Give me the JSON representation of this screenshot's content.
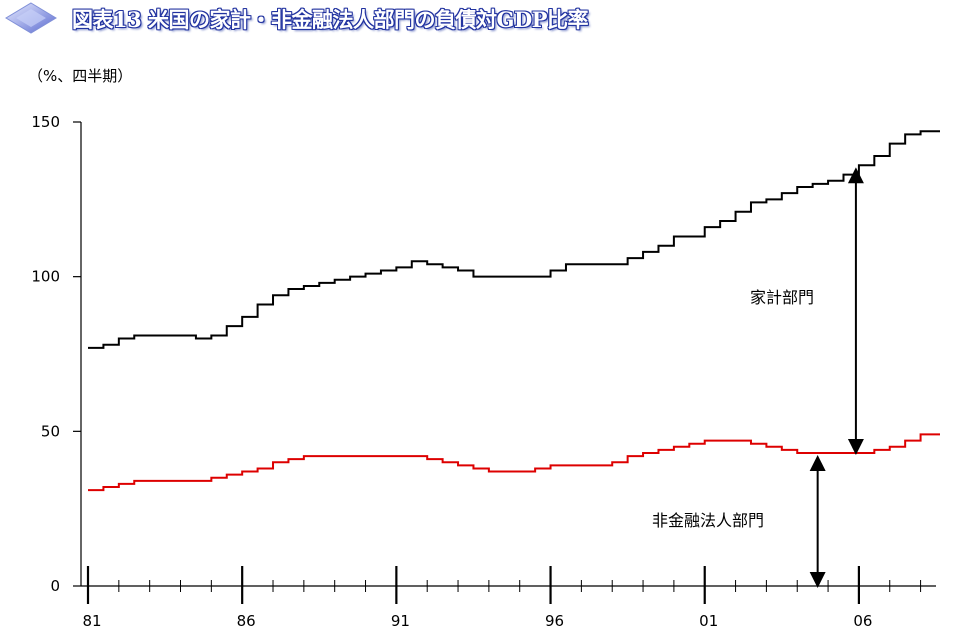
{
  "header": {
    "title": "図表13 米国の家計・非金融法人部門の負債対GDP比率",
    "logo_icon": "diamond-logo-icon"
  },
  "chart_data": {
    "type": "line",
    "title": "図表13 米国の家計・非金融法人部門の負債対GDP比率",
    "unit_label": "（%、四半期）",
    "xlabel": "",
    "ylabel": "",
    "x_start": 1981.0,
    "x_end": 2008.5,
    "ylim": [
      0,
      150
    ],
    "yticks": [
      0,
      50,
      100,
      150
    ],
    "xticks": [
      "81",
      "86",
      "91",
      "96",
      "01",
      "06"
    ],
    "grid": false,
    "legend": "none",
    "series": [
      {
        "name": "家計部門",
        "color": "#000000",
        "points": [
          [
            1981.0,
            77
          ],
          [
            1981.5,
            78
          ],
          [
            1982.0,
            80
          ],
          [
            1982.5,
            81
          ],
          [
            1983.0,
            81
          ],
          [
            1983.5,
            81
          ],
          [
            1984.0,
            81
          ],
          [
            1984.5,
            80
          ],
          [
            1985.0,
            81
          ],
          [
            1985.5,
            84
          ],
          [
            1986.0,
            87
          ],
          [
            1986.5,
            91
          ],
          [
            1987.0,
            94
          ],
          [
            1987.5,
            96
          ],
          [
            1988.0,
            97
          ],
          [
            1988.5,
            98
          ],
          [
            1989.0,
            99
          ],
          [
            1989.5,
            100
          ],
          [
            1990.0,
            101
          ],
          [
            1990.5,
            102
          ],
          [
            1991.0,
            103
          ],
          [
            1991.5,
            105
          ],
          [
            1992.0,
            104
          ],
          [
            1992.5,
            103
          ],
          [
            1993.0,
            102
          ],
          [
            1993.5,
            100
          ],
          [
            1994.0,
            100
          ],
          [
            1994.5,
            100
          ],
          [
            1995.0,
            100
          ],
          [
            1995.5,
            100
          ],
          [
            1996.0,
            102
          ],
          [
            1996.5,
            104
          ],
          [
            1997.0,
            104
          ],
          [
            1997.5,
            104
          ],
          [
            1998.0,
            104
          ],
          [
            1998.5,
            106
          ],
          [
            1999.0,
            108
          ],
          [
            1999.5,
            110
          ],
          [
            2000.0,
            113
          ],
          [
            2000.5,
            113
          ],
          [
            2001.0,
            116
          ],
          [
            2001.5,
            118
          ],
          [
            2002.0,
            121
          ],
          [
            2002.5,
            124
          ],
          [
            2003.0,
            125
          ],
          [
            2003.5,
            127
          ],
          [
            2004.0,
            129
          ],
          [
            2004.5,
            130
          ],
          [
            2005.0,
            131
          ],
          [
            2005.5,
            133
          ],
          [
            2006.0,
            136
          ],
          [
            2006.5,
            139
          ],
          [
            2007.0,
            143
          ],
          [
            2007.5,
            146
          ],
          [
            2008.0,
            147
          ],
          [
            2008.5,
            147
          ]
        ]
      },
      {
        "name": "非金融法人部門",
        "color": "#dd0000",
        "points": [
          [
            1981.0,
            31
          ],
          [
            1981.5,
            32
          ],
          [
            1982.0,
            33
          ],
          [
            1982.5,
            34
          ],
          [
            1983.0,
            34
          ],
          [
            1983.5,
            34
          ],
          [
            1984.0,
            34
          ],
          [
            1984.5,
            34
          ],
          [
            1985.0,
            35
          ],
          [
            1985.5,
            36
          ],
          [
            1986.0,
            37
          ],
          [
            1986.5,
            38
          ],
          [
            1987.0,
            40
          ],
          [
            1987.5,
            41
          ],
          [
            1988.0,
            42
          ],
          [
            1988.5,
            42
          ],
          [
            1989.0,
            42
          ],
          [
            1989.5,
            42
          ],
          [
            1990.0,
            42
          ],
          [
            1990.5,
            42
          ],
          [
            1991.0,
            42
          ],
          [
            1991.5,
            42
          ],
          [
            1992.0,
            41
          ],
          [
            1992.5,
            40
          ],
          [
            1993.0,
            39
          ],
          [
            1993.5,
            38
          ],
          [
            1994.0,
            37
          ],
          [
            1994.5,
            37
          ],
          [
            1995.0,
            37
          ],
          [
            1995.5,
            38
          ],
          [
            1996.0,
            39
          ],
          [
            1996.5,
            39
          ],
          [
            1997.0,
            39
          ],
          [
            1997.5,
            39
          ],
          [
            1998.0,
            40
          ],
          [
            1998.5,
            42
          ],
          [
            1999.0,
            43
          ],
          [
            1999.5,
            44
          ],
          [
            2000.0,
            45
          ],
          [
            2000.5,
            46
          ],
          [
            2001.0,
            47
          ],
          [
            2001.5,
            47
          ],
          [
            2002.0,
            47
          ],
          [
            2002.5,
            46
          ],
          [
            2003.0,
            45
          ],
          [
            2003.5,
            44
          ],
          [
            2004.0,
            43
          ],
          [
            2004.5,
            43
          ],
          [
            2005.0,
            43
          ],
          [
            2005.5,
            43
          ],
          [
            2006.0,
            43
          ],
          [
            2006.5,
            44
          ],
          [
            2007.0,
            45
          ],
          [
            2007.5,
            47
          ],
          [
            2008.0,
            49
          ],
          [
            2008.5,
            49
          ]
        ]
      }
    ],
    "annotations": [
      {
        "label": "家計部門",
        "arrow_from_year": 2006.0,
        "from_series": "非金融法人部門",
        "to_series": "家計部門"
      },
      {
        "label": "非金融法人部門",
        "arrow_from_year": 2004.5,
        "from_value": 0,
        "to_series": "非金融法人部門"
      }
    ]
  }
}
